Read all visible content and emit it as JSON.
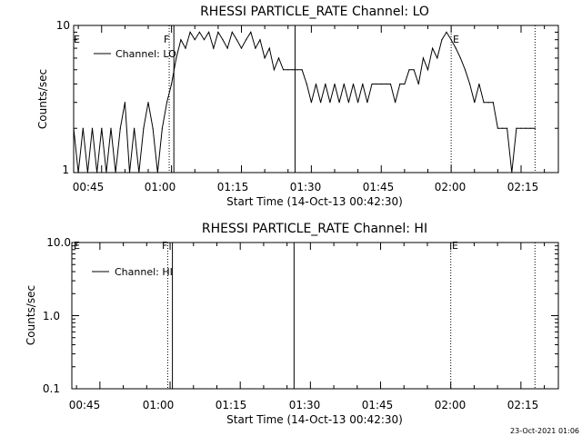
{
  "footer_timestamp": "23-Oct-2021 01:06",
  "chart_data": [
    {
      "type": "line",
      "title": "RHESSI PARTICLE_RATE Channel: LO",
      "xlabel": "Start Time (14-Oct-13 00:42:30)",
      "ylabel": "Counts/sec",
      "yscale": "log",
      "xlim": [
        "00:39",
        "02:23"
      ],
      "ylim": [
        1,
        10
      ],
      "x_ticks": [
        "00:45",
        "01:00",
        "01:15",
        "01:30",
        "01:45",
        "02:00",
        "02:15"
      ],
      "y_ticks": [
        "1",
        "10"
      ],
      "legend": {
        "label": "Channel: LO",
        "position": "top-left"
      },
      "vertical_lines": [
        {
          "x": "00:59.5",
          "style": "dotted"
        },
        {
          "x": "01:00.5",
          "style": "solid"
        },
        {
          "x": "01:26.5",
          "style": "solid"
        },
        {
          "x": "02:00",
          "style": "dotted"
        },
        {
          "x": "02:18",
          "style": "dotted"
        }
      ],
      "markers": [
        {
          "label": "E",
          "x": "00:39"
        },
        {
          "label": "F",
          "x": "01:00.5"
        },
        {
          "label": "E",
          "x": "02:01"
        }
      ],
      "series": [
        {
          "x": [
            "00:39",
            "00:40",
            "00:41",
            "00:42",
            "00:43",
            "00:44",
            "00:45",
            "00:46",
            "00:47",
            "00:48",
            "00:49",
            "00:50",
            "00:51",
            "00:52",
            "00:53",
            "00:54",
            "00:55",
            "00:56",
            "00:57",
            "00:58",
            "00:59",
            "01:00",
            "01:01",
            "01:02",
            "01:03",
            "01:04",
            "01:05",
            "01:06",
            "01:07",
            "01:08",
            "01:09",
            "01:10",
            "01:11",
            "01:12",
            "01:13",
            "01:14",
            "01:15",
            "01:16",
            "01:17",
            "01:18",
            "01:19",
            "01:20",
            "01:21",
            "01:22",
            "01:23",
            "01:24",
            "01:25",
            "01:26",
            "01:27",
            "01:28",
            "01:29",
            "01:30",
            "01:31",
            "01:32",
            "01:33",
            "01:34",
            "01:35",
            "01:36",
            "01:37",
            "01:38",
            "01:39",
            "01:40",
            "01:41",
            "01:42",
            "01:43",
            "01:44",
            "01:45",
            "01:46",
            "01:47",
            "01:48",
            "01:49",
            "01:50",
            "01:51",
            "01:52",
            "01:53",
            "01:54",
            "01:55",
            "01:56",
            "01:57",
            "01:58",
            "01:59",
            "02:00",
            "02:01",
            "02:02",
            "02:03",
            "02:04",
            "02:05",
            "02:06",
            "02:07",
            "02:08",
            "02:09",
            "02:10",
            "02:11",
            "02:12",
            "02:13",
            "02:14",
            "02:15",
            "02:16",
            "02:17",
            "02:18"
          ],
          "values": [
            2,
            1,
            2,
            1,
            2,
            1,
            2,
            1,
            2,
            1,
            2,
            3,
            1,
            2,
            1,
            2,
            3,
            2,
            1,
            2,
            3,
            4,
            6,
            8,
            7,
            9,
            8,
            9,
            8,
            9,
            7,
            9,
            8,
            7,
            9,
            8,
            7,
            8,
            9,
            7,
            8,
            6,
            7,
            5,
            6,
            5,
            5,
            5,
            5,
            5,
            4,
            3,
            4,
            3,
            4,
            3,
            4,
            3,
            4,
            3,
            4,
            3,
            4,
            3,
            4,
            4,
            4,
            4,
            4,
            3,
            4,
            4,
            5,
            5,
            4,
            6,
            5,
            7,
            6,
            8,
            9,
            8,
            7,
            6,
            5,
            4,
            3,
            4,
            3,
            3,
            3,
            2,
            2,
            2,
            1,
            2,
            2,
            2,
            2,
            2
          ]
        }
      ]
    },
    {
      "type": "line",
      "title": "RHESSI PARTICLE_RATE Channel: HI",
      "xlabel": "Start Time (14-Oct-13 00:42:30)",
      "ylabel": "Counts/sec",
      "yscale": "log",
      "xlim": [
        "00:39",
        "02:23"
      ],
      "ylim": [
        0.1,
        10
      ],
      "x_ticks": [
        "00:45",
        "01:00",
        "01:15",
        "01:30",
        "01:45",
        "02:00",
        "02:15"
      ],
      "y_ticks": [
        "0.1",
        "1.0",
        "10.0"
      ],
      "legend": {
        "label": "Channel: HI",
        "position": "top-left"
      },
      "vertical_lines": [
        {
          "x": "00:59.5",
          "style": "dotted"
        },
        {
          "x": "01:00.5",
          "style": "solid"
        },
        {
          "x": "01:26.5",
          "style": "solid"
        },
        {
          "x": "02:00",
          "style": "dotted"
        },
        {
          "x": "02:18",
          "style": "dotted"
        }
      ],
      "markers": [
        {
          "label": "E",
          "x": "00:39"
        },
        {
          "label": "F",
          "x": "01:00.5"
        },
        {
          "label": "E",
          "x": "02:01"
        }
      ],
      "series": []
    }
  ]
}
